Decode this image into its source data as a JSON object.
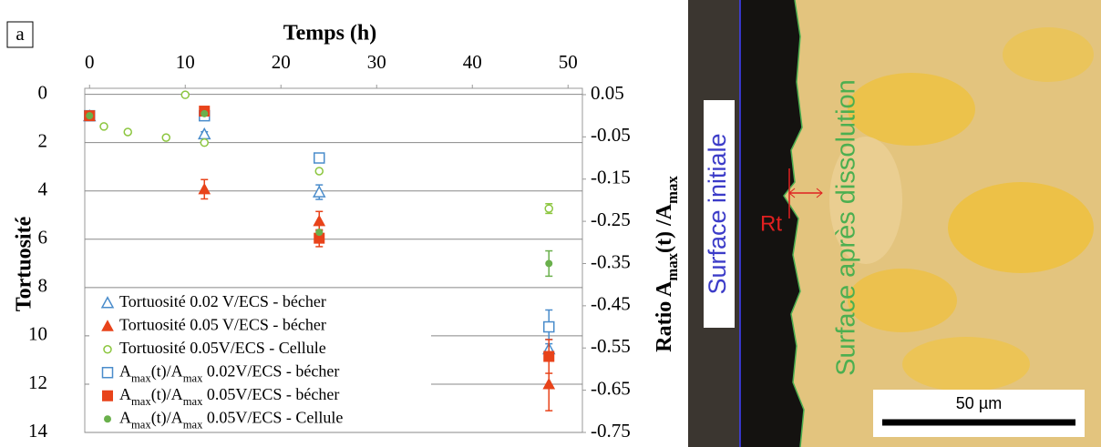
{
  "chart_data": {
    "type": "scatter",
    "panel_label": "a",
    "xlabel": "Temps (h)",
    "ylabel": "Tortuosité",
    "y2label": "Ratio Amax(t) /Amax",
    "xlim": [
      -0.5,
      51.5
    ],
    "xticks": [
      0,
      10,
      20,
      30,
      40,
      50
    ],
    "ylim": [
      14,
      -0.25
    ],
    "yticks": [
      0,
      2,
      4,
      6,
      8,
      10,
      12,
      14
    ],
    "y2lim": [
      -0.75,
      0.065
    ],
    "y2ticks": [
      0.05,
      -0.05,
      -0.15,
      -0.25,
      -0.35,
      -0.45,
      -0.55,
      -0.65,
      -0.75
    ],
    "grid": true,
    "legend": "lower left",
    "series": [
      {
        "name": "Tortuosité 0.02 V/ECS - bécher",
        "color": "#4a8ccb",
        "marker": "triangle-open",
        "axis": "y",
        "x": [
          0,
          12,
          24,
          48
        ],
        "values": [
          0.9,
          1.65,
          4.05,
          10.55
        ],
        "errors": [
          null,
          0.1,
          0.3,
          0.4
        ]
      },
      {
        "name": "Tortuosité 0.05 V/ECS - bécher",
        "color": "#e8431a",
        "marker": "triangle",
        "axis": "y",
        "x": [
          0,
          12,
          24,
          48
        ],
        "values": [
          0.9,
          3.93,
          5.25,
          12.0
        ],
        "errors": [
          null,
          0.4,
          0.4,
          1.1
        ]
      },
      {
        "name": "Tortuosité 0.05V/ECS - Cellule",
        "color": "#8cc63f",
        "marker": "circle-open",
        "axis": "y",
        "x": [
          0,
          1.5,
          4,
          8,
          10,
          12,
          24,
          48
        ],
        "values": [
          0.9,
          1.33,
          1.56,
          1.79,
          0.02,
          2.0,
          3.18,
          4.73
        ],
        "errors": [
          null,
          null,
          null,
          null,
          null,
          null,
          null,
          0.2
        ]
      },
      {
        "name": "Amax(t)/Amax 0.02V/ECS - bécher",
        "color": "#4a8ccb",
        "marker": "square-open",
        "axis": "y2",
        "x": [
          0,
          12,
          24,
          48
        ],
        "values": [
          0.0,
          0.0,
          -0.1,
          -0.5
        ],
        "errors": [
          null,
          null,
          null,
          0.04
        ]
      },
      {
        "name": "Amax(t)/Amax 0.05V/ECS - bécher",
        "color": "#e8431a",
        "marker": "square",
        "axis": "y2",
        "x": [
          0,
          12,
          24,
          48
        ],
        "values": [
          0.0,
          0.011,
          -0.29,
          -0.57
        ],
        "errors": [
          null,
          null,
          0.02,
          0.04
        ]
      },
      {
        "name": "Amax(t)/Amax 0.05V/ECS - Cellule",
        "color": "#6ab04c",
        "marker": "circle",
        "axis": "y2",
        "x": [
          0,
          12,
          24,
          48
        ],
        "values": [
          0.0,
          0.005,
          -0.276,
          -0.35
        ],
        "errors": [
          null,
          null,
          null,
          0.03
        ]
      }
    ]
  },
  "micrograph": {
    "label_initial": "Surface initiale",
    "label_after": "Surface après dissolution",
    "roughness": "Rt",
    "scale_bar": "50 µm"
  }
}
